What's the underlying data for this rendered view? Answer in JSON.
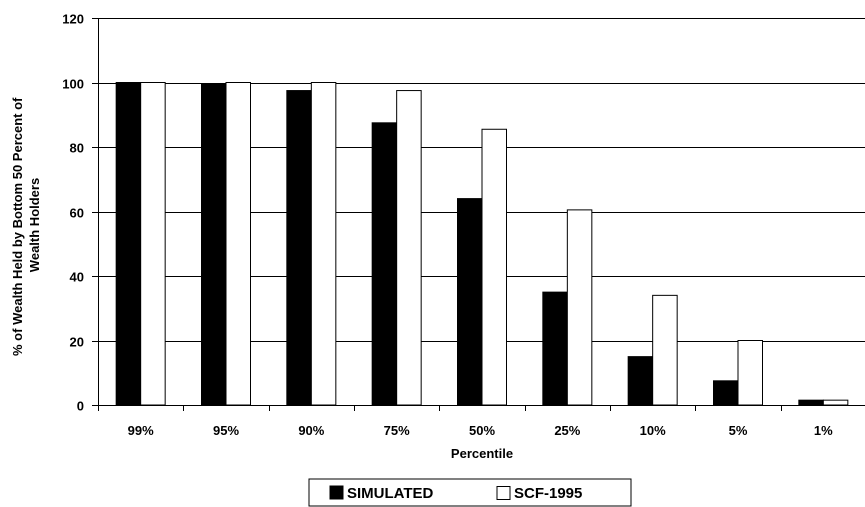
{
  "chart_data": {
    "type": "bar",
    "title": "",
    "xlabel": "Percentile",
    "ylabel_lines": [
      "% of Wealth Held by Bottom 50 Percent of",
      "Wealth Holders"
    ],
    "categories": [
      "99%",
      "95%",
      "90%",
      "75%",
      "50%",
      "25%",
      "10%",
      "5%",
      "1%"
    ],
    "series": [
      {
        "name": "SIMULATED",
        "color": "#000000",
        "values": [
          100,
          99.5,
          97.5,
          87.5,
          64,
          35,
          15,
          7.5,
          1.5
        ]
      },
      {
        "name": "SCF-1995",
        "color": "#ffffff",
        "values": [
          100,
          100,
          100,
          97.5,
          85.5,
          60.5,
          34,
          20,
          1.5
        ]
      }
    ],
    "ylim": [
      0,
      120
    ],
    "yticks": [
      "0",
      "20",
      "40",
      "60",
      "80",
      "100",
      "120"
    ],
    "grid": true,
    "legend_position": "bottom-center"
  }
}
